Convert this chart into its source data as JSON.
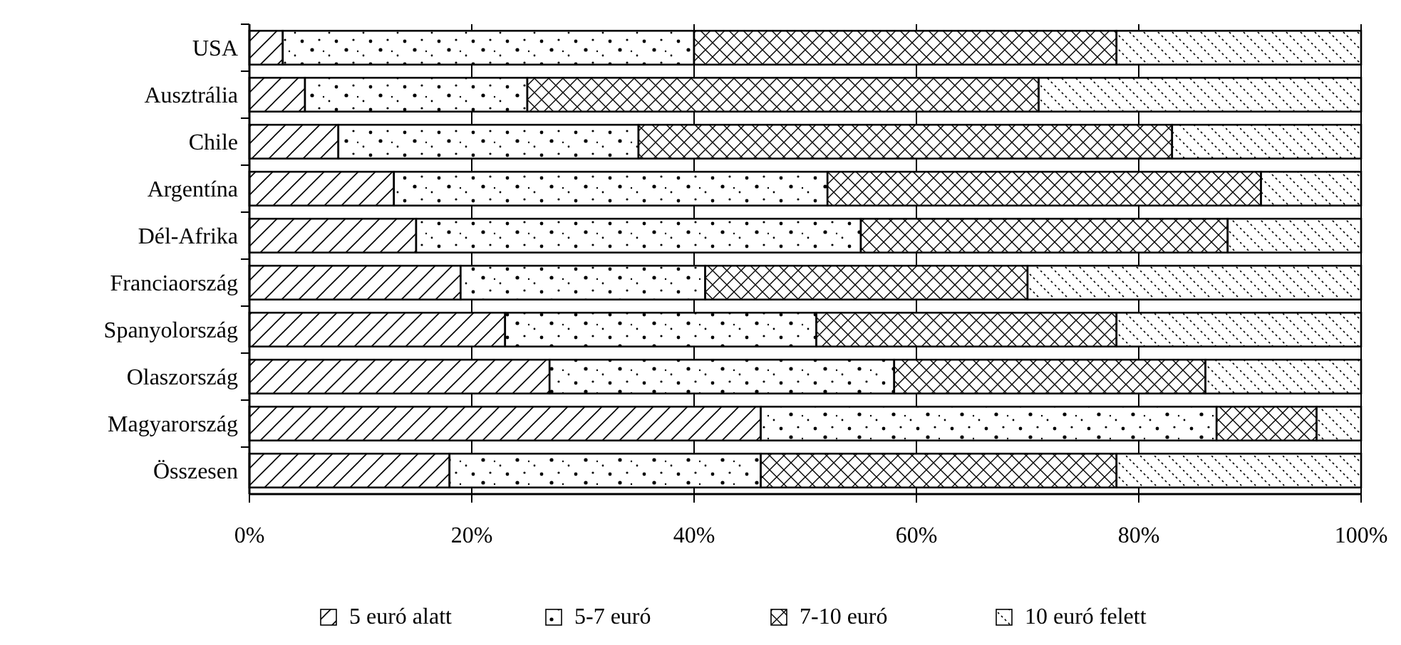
{
  "chart_data": {
    "type": "bar",
    "orientation": "horizontal",
    "stacked": true,
    "categories": [
      "USA",
      "Ausztrália",
      "Chile",
      "Argentína",
      "Dél-Afrika",
      "Franciaország",
      "Spanyolország",
      "Olaszország",
      "Magyarország",
      "Összesen"
    ],
    "series": [
      {
        "name": "5 euró alatt",
        "color": "#000000",
        "values": [
          3,
          5,
          8,
          13,
          15,
          19,
          23,
          27,
          46,
          18
        ]
      },
      {
        "name": "5-7 euró",
        "color": "#000000",
        "values": [
          37,
          20,
          27,
          39,
          40,
          22,
          28,
          31,
          41,
          28
        ]
      },
      {
        "name": "7-10 euró",
        "color": "#000000",
        "values": [
          38,
          46,
          48,
          39,
          33,
          29,
          27,
          28,
          9,
          32
        ]
      },
      {
        "name": "10 euró felett",
        "color": "#000000",
        "values": [
          22,
          29,
          17,
          9,
          12,
          30,
          22,
          14,
          4,
          22
        ]
      }
    ],
    "xlim": [
      0,
      100
    ],
    "xticks": [
      {
        "value": 0,
        "label": "0%"
      },
      {
        "value": 20,
        "label": "20%"
      },
      {
        "value": 40,
        "label": "40%"
      },
      {
        "value": 60,
        "label": "60%"
      },
      {
        "value": 80,
        "label": "80%"
      },
      {
        "value": 100,
        "label": "100%"
      }
    ],
    "grid": "x",
    "legend": "bottom"
  }
}
